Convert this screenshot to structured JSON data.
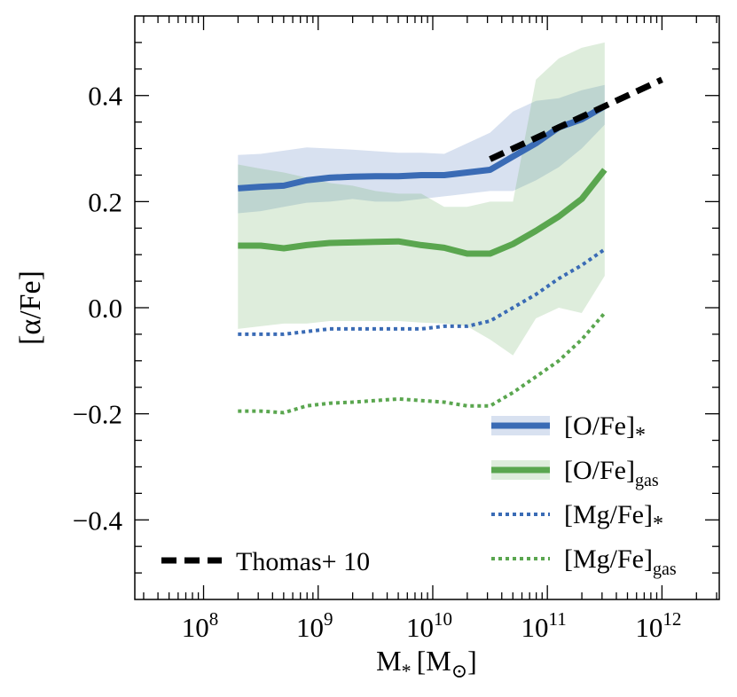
{
  "chart_data": {
    "type": "line",
    "title": "",
    "xlabel": "M",
    "xlabel_sub": "*",
    "xlabel_unit": "[M",
    "xlabel_unit_sub": "⊙",
    "xlabel_unit_close": "]",
    "ylabel": "[α/Fe]",
    "xscale": "log",
    "xlim_log10": [
      7.4,
      12.5
    ],
    "ylim": [
      -0.55,
      0.55
    ],
    "x_tick_labels": [
      {
        "base": "10",
        "exp": "8",
        "log10": 8
      },
      {
        "base": "10",
        "exp": "9",
        "log10": 9
      },
      {
        "base": "10",
        "exp": "10",
        "log10": 10
      },
      {
        "base": "10",
        "exp": "11",
        "log10": 11
      },
      {
        "base": "10",
        "exp": "12",
        "log10": 12
      }
    ],
    "y_ticks": [
      -0.4,
      -0.2,
      0.0,
      0.2,
      0.4
    ],
    "y_tick_labels": [
      "−0.4",
      "−0.2",
      "0.0",
      "0.2",
      "0.4"
    ],
    "grid": false,
    "legend_position": "bottom-right",
    "x_log10": [
      8.3,
      8.5,
      8.7,
      8.9,
      9.1,
      9.3,
      9.5,
      9.7,
      9.9,
      10.1,
      10.3,
      10.5,
      10.7,
      10.9,
      11.1,
      11.3,
      11.5
    ],
    "series": [
      {
        "name": "[O/Fe]",
        "sub": "*",
        "color": "#3a6bb5",
        "style": "solid",
        "values": [
          0.225,
          0.228,
          0.23,
          0.24,
          0.245,
          0.247,
          0.248,
          0.248,
          0.25,
          0.25,
          0.255,
          0.26,
          0.285,
          0.31,
          0.34,
          0.355,
          0.38
        ],
        "band_upper": [
          0.288,
          0.29,
          0.296,
          0.302,
          0.3,
          0.298,
          0.295,
          0.292,
          0.292,
          0.29,
          0.31,
          0.33,
          0.37,
          0.39,
          0.395,
          0.41,
          0.42
        ],
        "band_lower": [
          0.178,
          0.182,
          0.19,
          0.198,
          0.2,
          0.205,
          0.2,
          0.2,
          0.205,
          0.21,
          0.215,
          0.22,
          0.22,
          0.24,
          0.265,
          0.3,
          0.345
        ]
      },
      {
        "name": "[O/Fe]",
        "sub": "gas",
        "color": "#5aa64f",
        "style": "solid",
        "values": [
          0.117,
          0.117,
          0.112,
          0.118,
          0.122,
          0.123,
          0.124,
          0.125,
          0.118,
          0.113,
          0.102,
          0.102,
          0.12,
          0.145,
          0.172,
          0.205,
          0.26
        ],
        "band_upper": [
          0.27,
          0.262,
          0.255,
          0.245,
          0.235,
          0.23,
          0.22,
          0.215,
          0.215,
          0.19,
          0.19,
          0.2,
          0.2,
          0.43,
          0.47,
          0.49,
          0.5
        ],
        "band_lower": [
          -0.04,
          -0.035,
          -0.03,
          -0.03,
          -0.025,
          -0.025,
          -0.025,
          -0.025,
          -0.028,
          -0.03,
          -0.035,
          -0.06,
          -0.09,
          -0.02,
          0.0,
          -0.01,
          0.06
        ]
      },
      {
        "name": "[Mg/Fe]",
        "sub": "*",
        "color": "#3a6bb5",
        "style": "dotted",
        "values": [
          -0.05,
          -0.05,
          -0.05,
          -0.045,
          -0.04,
          -0.04,
          -0.04,
          -0.04,
          -0.04,
          -0.035,
          -0.035,
          -0.025,
          0.0,
          0.025,
          0.055,
          0.08,
          0.11
        ]
      },
      {
        "name": "[Mg/Fe]",
        "sub": "gas",
        "color": "#5aa64f",
        "style": "dotted",
        "values": [
          -0.195,
          -0.195,
          -0.198,
          -0.185,
          -0.18,
          -0.178,
          -0.175,
          -0.172,
          -0.175,
          -0.178,
          -0.185,
          -0.185,
          -0.16,
          -0.13,
          -0.1,
          -0.06,
          -0.01
        ]
      },
      {
        "name": "Thomas+ 10",
        "color": "#000000",
        "style": "dashed",
        "x_log10": [
          10.5,
          12.0
        ],
        "values": [
          0.28,
          0.43
        ]
      }
    ]
  }
}
